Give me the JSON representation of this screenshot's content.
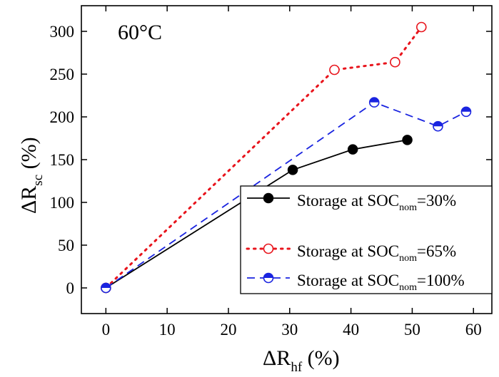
{
  "chart_data": {
    "type": "line",
    "annotation": "60°C",
    "xlabel": "ΔR",
    "xlabel_sub": "hf",
    "xlabel_unit": " (%)",
    "ylabel": "ΔR",
    "ylabel_sub": "sc",
    "ylabel_unit": " (%)",
    "xlim": [
      -4,
      63
    ],
    "ylim": [
      -30,
      330
    ],
    "xticks": [
      0,
      10,
      20,
      30,
      40,
      50,
      60
    ],
    "yticks": [
      0,
      50,
      100,
      150,
      200,
      250,
      300
    ],
    "grid": false,
    "legend_position": "bottom-right",
    "series": [
      {
        "name": "Storage at SOC",
        "name_sub": "nom",
        "name_suffix": "=30%",
        "color": "#000000",
        "line_style": "solid",
        "marker": "filled-circle",
        "x": [
          0,
          30.5,
          40.3,
          49.2
        ],
        "y": [
          0,
          138,
          162,
          173
        ]
      },
      {
        "name": "Storage at SOC",
        "name_sub": "nom",
        "name_suffix": "=65%",
        "color": "#e8141c",
        "line_style": "dotted",
        "marker": "open-circle",
        "x": [
          0,
          37.3,
          47.2,
          51.5
        ],
        "y": [
          0,
          255,
          264,
          305
        ]
      },
      {
        "name": "Storage at SOC",
        "name_sub": "nom",
        "name_suffix": "=100%",
        "color": "#1a24e0",
        "line_style": "dashed",
        "marker": "half-filled-circle",
        "x": [
          0,
          43.8,
          54.2,
          58.8
        ],
        "y": [
          0,
          217,
          189,
          206
        ]
      }
    ]
  }
}
